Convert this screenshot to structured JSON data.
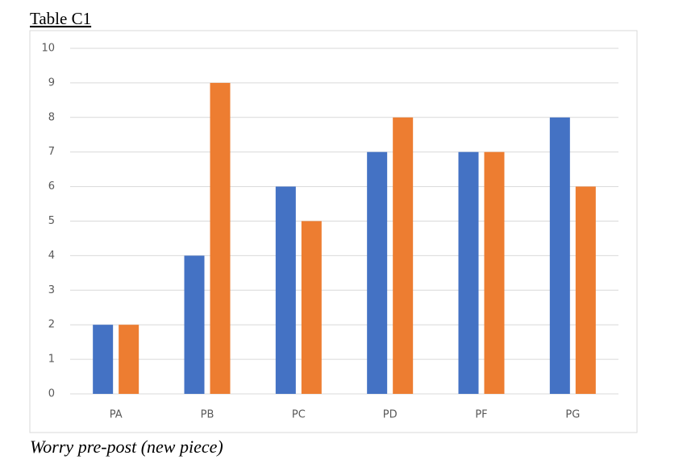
{
  "chart_data": {
    "type": "bar",
    "title": "Table C1",
    "caption": "Worry pre-post (new piece)",
    "categories": [
      "PA",
      "PB",
      "PC",
      "PD",
      "PF",
      "PG"
    ],
    "series": [
      {
        "color": "#4472c4",
        "values": [
          2,
          4,
          6,
          7,
          7,
          8
        ]
      },
      {
        "color": "#ed7d31",
        "values": [
          2,
          9,
          5,
          8,
          7,
          6
        ]
      }
    ],
    "ylim": [
      0,
      10
    ],
    "yticks": [
      0,
      1,
      2,
      3,
      4,
      5,
      6,
      7,
      8,
      9,
      10
    ],
    "grid": true
  }
}
